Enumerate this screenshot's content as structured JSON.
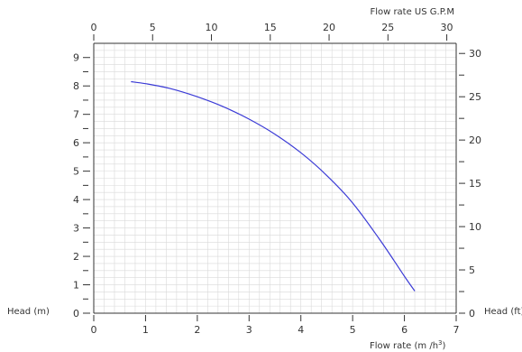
{
  "chart_data": {
    "type": "line",
    "title": "",
    "x_bottom": {
      "label": "Flow rate  (m /h",
      "label_superscript": "3",
      "label_close": ")",
      "range": [
        0,
        7
      ],
      "ticks": [
        "0",
        "1",
        "2",
        "3",
        "4",
        "5",
        "6",
        "7"
      ]
    },
    "x_top": {
      "label": "Flow rate US  G.P.M",
      "range": [
        0,
        30.8
      ],
      "ticks": [
        "0",
        "5",
        "10",
        "15",
        "20",
        "25",
        "30"
      ]
    },
    "y_left": {
      "label": "Head (m)",
      "range": [
        0,
        9.5
      ],
      "ticks": [
        "0",
        "1",
        "2",
        "3",
        "4",
        "5",
        "6",
        "7",
        "8",
        "9"
      ]
    },
    "y_right": {
      "label": "Head (ft)",
      "range": [
        0,
        31.17
      ],
      "ticks": [
        "0",
        "5",
        "10",
        "15",
        "20",
        "25",
        "30"
      ]
    },
    "grid": true,
    "series": [
      {
        "color": "#3b3bd6",
        "x": [
          0.72,
          1.0,
          1.5,
          2.0,
          2.5,
          3.0,
          3.5,
          4.0,
          4.5,
          5.0,
          5.5,
          5.8,
          6.0,
          6.2
        ],
        "y": [
          8.15,
          8.08,
          7.9,
          7.62,
          7.27,
          6.83,
          6.3,
          5.65,
          4.85,
          3.88,
          2.65,
          1.85,
          1.3,
          0.78
        ]
      }
    ]
  }
}
